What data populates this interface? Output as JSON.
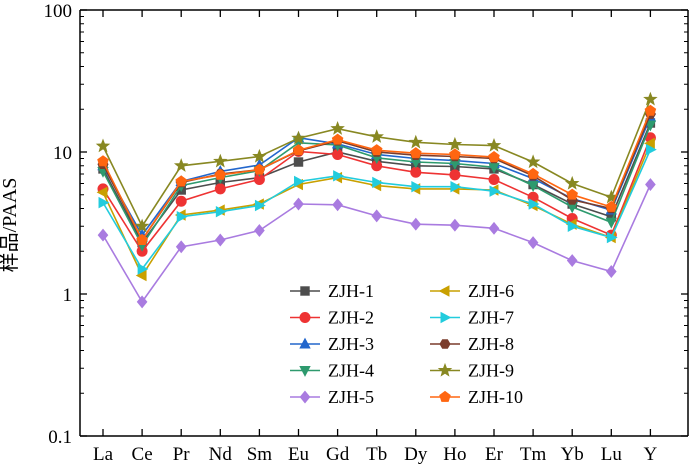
{
  "chart_data": {
    "type": "line",
    "title": "",
    "xlabel": "",
    "ylabel": "样品/PAAS",
    "y_scale": "log",
    "ylim": [
      0.1,
      100
    ],
    "y_ticks": [
      "0.1",
      "1",
      "10",
      "100"
    ],
    "grid": false,
    "legend": "bottom-center, two columns",
    "categories": [
      "La",
      "Ce",
      "Pr",
      "Nd",
      "Sm",
      "Eu",
      "Gd",
      "Tb",
      "Dy",
      "Ho",
      "Er",
      "Tm",
      "Yb",
      "Lu",
      "Y"
    ],
    "series": [
      {
        "name": "ZJH-1",
        "color": "#4d4d4d",
        "marker": "square",
        "values": [
          7.6,
          2.3,
          5.4,
          6.1,
          6.6,
          8.5,
          10.0,
          8.6,
          8.0,
          7.9,
          7.6,
          5.9,
          4.3,
          3.5,
          16.0
        ]
      },
      {
        "name": "ZJH-2",
        "color": "#ee3333",
        "marker": "circle",
        "values": [
          5.5,
          2.0,
          4.5,
          5.5,
          6.4,
          10.1,
          9.6,
          8.0,
          7.2,
          6.9,
          6.4,
          4.8,
          3.4,
          2.6,
          12.6
        ]
      },
      {
        "name": "ZJH-3",
        "color": "#2266cc",
        "marker": "triangle-up",
        "values": [
          8.0,
          2.6,
          6.2,
          7.3,
          8.1,
          12.6,
          11.4,
          9.6,
          9.0,
          8.7,
          8.3,
          6.5,
          4.7,
          3.9,
          17.6
        ]
      },
      {
        "name": "ZJH-4",
        "color": "#2e9a6e",
        "marker": "triangle-down",
        "values": [
          7.3,
          2.2,
          5.8,
          6.6,
          7.4,
          11.6,
          11.2,
          9.1,
          8.5,
          8.3,
          7.8,
          5.8,
          4.1,
          3.2,
          15.5
        ]
      },
      {
        "name": "ZJH-5",
        "color": "#a97be0",
        "marker": "diamond",
        "values": [
          2.6,
          0.88,
          2.15,
          2.4,
          2.8,
          4.3,
          4.25,
          3.55,
          3.1,
          3.05,
          2.9,
          2.3,
          1.72,
          1.44,
          5.9
        ]
      },
      {
        "name": "ZJH-6",
        "color": "#c9a000",
        "marker": "triangle-left",
        "values": [
          5.2,
          1.35,
          3.6,
          3.9,
          4.3,
          5.9,
          6.6,
          5.8,
          5.5,
          5.5,
          5.4,
          4.2,
          3.1,
          2.5,
          11.5
        ]
      },
      {
        "name": "ZJH-7",
        "color": "#22ccdd",
        "marker": "triangle-right",
        "values": [
          4.4,
          1.5,
          3.5,
          3.8,
          4.2,
          6.2,
          6.8,
          6.1,
          5.7,
          5.7,
          5.3,
          4.3,
          3.0,
          2.5,
          10.4
        ]
      },
      {
        "name": "ZJH-8",
        "color": "#7a3c2c",
        "marker": "hexagon",
        "values": [
          8.2,
          2.4,
          6.1,
          7.0,
          7.5,
          10.2,
          12.0,
          10.0,
          9.5,
          9.3,
          9.0,
          6.8,
          4.6,
          4.0,
          18.5
        ]
      },
      {
        "name": "ZJH-9",
        "color": "#888822",
        "marker": "star",
        "values": [
          11.0,
          3.0,
          8.0,
          8.6,
          9.3,
          12.5,
          14.6,
          12.8,
          11.7,
          11.3,
          11.1,
          8.5,
          6.0,
          4.8,
          23.5
        ]
      },
      {
        "name": "ZJH-10",
        "color": "#ff6611",
        "marker": "pentagon",
        "values": [
          8.6,
          2.4,
          6.2,
          6.9,
          7.5,
          10.3,
          12.2,
          10.3,
          9.8,
          9.6,
          9.2,
          7.0,
          5.0,
          4.1,
          19.5
        ]
      }
    ]
  }
}
